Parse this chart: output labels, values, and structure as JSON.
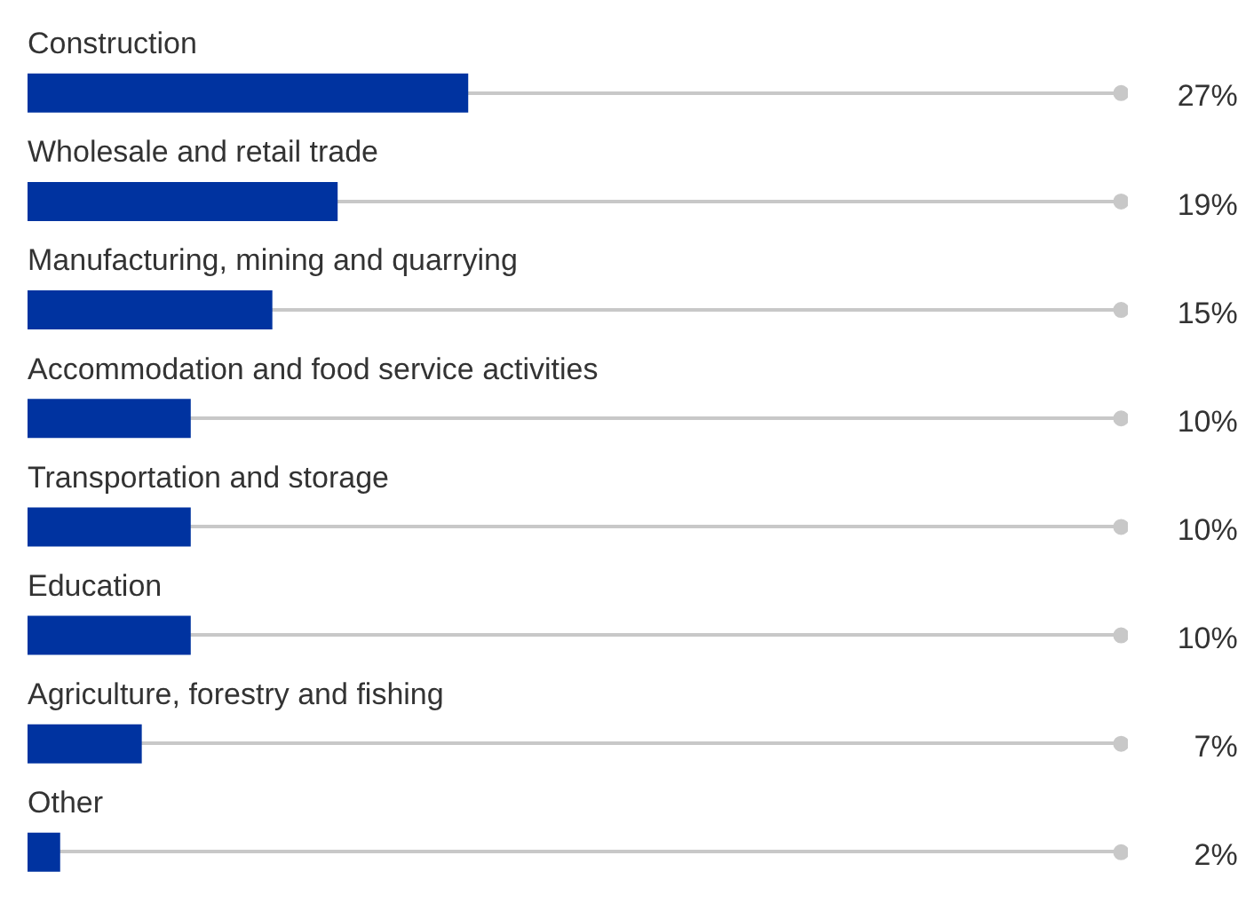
{
  "chart_data": {
    "type": "bar",
    "orientation": "horizontal",
    "categories": [
      "Construction",
      "Wholesale and retail trade",
      "Manufacturing, mining and quarrying",
      "Accommodation and food service activities",
      "Transportation and storage",
      "Education",
      "Agriculture, forestry and fishing",
      "Other"
    ],
    "series": [
      {
        "type": "scatter",
        "color": "#c8c8c8",
        "values": [
          67,
          67,
          67,
          67,
          67,
          67,
          67,
          67
        ]
      },
      {
        "type": "bar",
        "color": "#0033a0",
        "values": [
          27,
          19,
          15,
          10,
          10,
          10,
          7,
          2
        ],
        "value_labels": [
          "27%",
          "19%",
          "15%",
          "10%",
          "10%",
          "10%",
          "7%",
          "2%"
        ]
      }
    ],
    "marker": "circle",
    "xlim": [
      0,
      67
    ],
    "tick_labels": false,
    "grid": "y"
  }
}
